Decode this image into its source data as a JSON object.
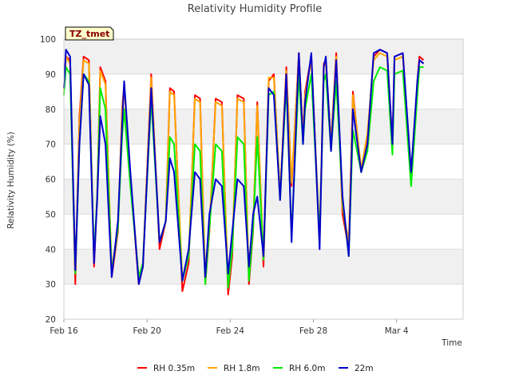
{
  "chart_data": {
    "type": "line",
    "title": "Relativity Humidity Profile",
    "xlabel": "Time",
    "ylabel": "Relativity Humidity (%)",
    "badge": "TZ_tmet",
    "ylim": [
      20,
      100
    ],
    "yticks": [
      20,
      30,
      40,
      50,
      60,
      70,
      80,
      90,
      100
    ],
    "xlim_days": [
      0,
      19.2
    ],
    "xticks": [
      {
        "day": 0,
        "label": "Feb 16"
      },
      {
        "day": 4,
        "label": "Feb 20"
      },
      {
        "day": 8,
        "label": "Feb 24"
      },
      {
        "day": 12,
        "label": "Feb 28"
      },
      {
        "day": 16,
        "label": "Mar 4"
      }
    ],
    "grid": true,
    "colors": {
      "rh035": "#ff0000",
      "rh18": "#ffa500",
      "rh60": "#00ee00",
      "m22": "#0000cc",
      "band": "#f0f0f0",
      "grid": "#dddddd"
    },
    "series": [
      {
        "name": "RH 0.35m",
        "key": "rh035",
        "x": [
          0.0,
          0.1,
          0.3,
          0.55,
          0.75,
          0.95,
          1.2,
          1.45,
          1.6,
          1.75,
          2.0,
          2.3,
          2.6,
          2.8,
          2.9,
          3.2,
          3.6,
          3.8,
          4.2,
          4.6,
          4.9,
          5.1,
          5.3,
          5.7,
          6.0,
          6.3,
          6.55,
          6.8,
          7.0,
          7.3,
          7.6,
          7.9,
          8.1,
          8.35,
          8.65,
          8.9,
          9.1,
          9.3,
          9.6,
          9.85,
          10.1,
          10.4,
          10.7,
          10.95,
          11.3,
          11.5,
          11.6,
          11.9,
          12.3,
          12.5,
          12.6,
          12.85,
          13.1,
          13.4,
          13.7,
          13.9,
          14.3,
          14.6,
          14.9,
          15.2,
          15.55,
          15.8,
          15.9,
          16.3,
          16.7,
          17.0,
          17.1,
          17.3
        ],
        "values": [
          86,
          95,
          94,
          30,
          78,
          95,
          94,
          35,
          55,
          92,
          88,
          32,
          45,
          80,
          87,
          60,
          30,
          35,
          90,
          40,
          48,
          86,
          85,
          28,
          36,
          84,
          83,
          30,
          45,
          83,
          82,
          27,
          38,
          84,
          83,
          30,
          45,
          82,
          35,
          88,
          90,
          55,
          92,
          58,
          96,
          72,
          85,
          95,
          42,
          93,
          94,
          70,
          96,
          50,
          40,
          85,
          62,
          72,
          95,
          97,
          96,
          70,
          95,
          96,
          60,
          88,
          95,
          94
        ]
      },
      {
        "name": "RH 1.8m",
        "key": "rh18",
        "x": [
          0.0,
          0.1,
          0.3,
          0.55,
          0.75,
          0.95,
          1.2,
          1.45,
          1.6,
          1.75,
          2.0,
          2.3,
          2.6,
          2.8,
          2.9,
          3.2,
          3.6,
          3.8,
          4.2,
          4.6,
          4.9,
          5.1,
          5.3,
          5.7,
          6.0,
          6.3,
          6.55,
          6.8,
          7.0,
          7.3,
          7.6,
          7.9,
          8.1,
          8.35,
          8.65,
          8.9,
          9.1,
          9.3,
          9.6,
          9.85,
          10.1,
          10.4,
          10.7,
          10.95,
          11.3,
          11.5,
          11.6,
          11.9,
          12.3,
          12.5,
          12.6,
          12.85,
          13.1,
          13.4,
          13.7,
          13.9,
          14.3,
          14.6,
          14.9,
          15.2,
          15.55,
          15.8,
          15.9,
          16.3,
          16.7,
          17.0,
          17.1,
          17.3
        ],
        "values": [
          85,
          95,
          93,
          33,
          76,
          94,
          93,
          37,
          55,
          91,
          87,
          34,
          46,
          79,
          86,
          60,
          32,
          36,
          89,
          42,
          48,
          85,
          84,
          31,
          38,
          83,
          82,
          32,
          46,
          82,
          81,
          30,
          40,
          83,
          82,
          32,
          46,
          81,
          37,
          89,
          89,
          56,
          91,
          59,
          95,
          72,
          84,
          94,
          44,
          92,
          93,
          70,
          95,
          52,
          42,
          84,
          63,
          73,
          94,
          96,
          95,
          70,
          94,
          95,
          62,
          87,
          94,
          93
        ]
      },
      {
        "name": "RH 6.0m",
        "key": "rh60",
        "x": [
          0.0,
          0.1,
          0.3,
          0.55,
          0.75,
          0.95,
          1.2,
          1.45,
          1.6,
          1.75,
          2.0,
          2.3,
          2.6,
          2.8,
          2.9,
          3.2,
          3.6,
          3.8,
          4.2,
          4.6,
          4.9,
          5.1,
          5.3,
          5.7,
          6.0,
          6.3,
          6.55,
          6.8,
          7.0,
          7.3,
          7.6,
          7.9,
          8.1,
          8.35,
          8.65,
          8.9,
          9.1,
          9.3,
          9.6,
          9.85,
          10.1,
          10.4,
          10.7,
          10.95,
          11.3,
          11.5,
          11.6,
          11.9,
          12.3,
          12.5,
          12.6,
          12.85,
          13.1,
          13.4,
          13.7,
          13.9,
          14.3,
          14.6,
          14.9,
          15.2,
          15.55,
          15.8,
          15.9,
          16.3,
          16.7,
          17.0,
          17.1,
          17.3
        ],
        "values": [
          84,
          92,
          90,
          33,
          70,
          90,
          88,
          38,
          55,
          86,
          80,
          33,
          46,
          72,
          80,
          58,
          32,
          36,
          83,
          42,
          48,
          72,
          70,
          31,
          38,
          70,
          68,
          30,
          46,
          70,
          68,
          29,
          40,
          72,
          70,
          31,
          46,
          72,
          37,
          84,
          85,
          54,
          87,
          44,
          90,
          70,
          80,
          90,
          43,
          88,
          90,
          68,
          88,
          54,
          38,
          74,
          62,
          68,
          88,
          92,
          91,
          67,
          90,
          91,
          58,
          84,
          92,
          92
        ]
      },
      {
        "name": "22m",
        "key": "m22",
        "x": [
          0.0,
          0.1,
          0.3,
          0.55,
          0.75,
          0.95,
          1.2,
          1.45,
          1.6,
          1.75,
          2.0,
          2.3,
          2.6,
          2.8,
          2.9,
          3.2,
          3.6,
          3.8,
          4.2,
          4.6,
          4.9,
          5.1,
          5.3,
          5.7,
          6.0,
          6.3,
          6.55,
          6.8,
          7.0,
          7.3,
          7.6,
          7.9,
          8.1,
          8.35,
          8.65,
          8.9,
          9.1,
          9.3,
          9.6,
          9.85,
          10.1,
          10.4,
          10.7,
          10.95,
          11.3,
          11.5,
          11.6,
          11.9,
          12.3,
          12.5,
          12.6,
          12.85,
          13.1,
          13.4,
          13.7,
          13.9,
          14.3,
          14.6,
          14.9,
          15.2,
          15.55,
          15.8,
          15.9,
          16.3,
          16.7,
          17.0,
          17.1,
          17.3
        ],
        "values": [
          86,
          97,
          95,
          34,
          70,
          90,
          87,
          36,
          54,
          78,
          70,
          32,
          48,
          75,
          88,
          62,
          30,
          35,
          86,
          42,
          48,
          66,
          62,
          31,
          40,
          62,
          60,
          32,
          50,
          60,
          58,
          33,
          45,
          60,
          58,
          35,
          50,
          55,
          38,
          86,
          84,
          54,
          90,
          42,
          96,
          70,
          82,
          96,
          40,
          92,
          95,
          68,
          94,
          55,
          38,
          80,
          62,
          70,
          96,
          97,
          96,
          70,
          95,
          96,
          62,
          88,
          94,
          93
        ]
      }
    ]
  }
}
